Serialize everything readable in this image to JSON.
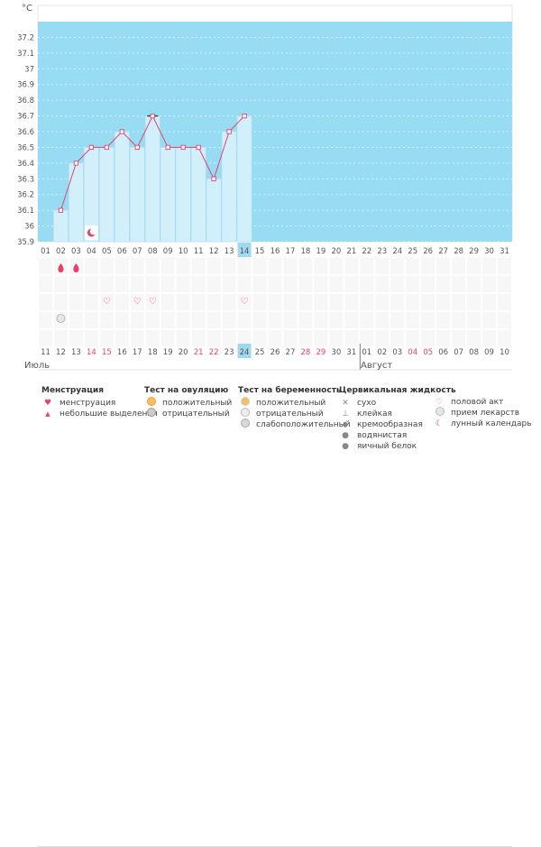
{
  "chart_data": {
    "type": "line",
    "y_unit_label": "°C",
    "ylim": [
      35.9,
      37.3
    ],
    "y_ticks": [
      "37.2",
      "37.1",
      "37",
      "36.9",
      "36.8",
      "36.7",
      "36.6",
      "36.5",
      "36.4",
      "36.3",
      "36.2",
      "36.1",
      "36",
      "35.9"
    ],
    "cycle_days": [
      "01",
      "02",
      "03",
      "04",
      "05",
      "06",
      "07",
      "08",
      "09",
      "10",
      "11",
      "12",
      "13",
      "14",
      "15",
      "16",
      "17",
      "18",
      "19",
      "20",
      "21",
      "22",
      "23",
      "24",
      "25",
      "26",
      "27",
      "28",
      "29",
      "30",
      "31"
    ],
    "temperatures": [
      null,
      36.1,
      36.4,
      36.5,
      36.5,
      36.6,
      36.5,
      36.7,
      36.5,
      36.5,
      36.5,
      36.3,
      36.6,
      36.7
    ],
    "current_cycle_day": "14",
    "calendar_dates": [
      {
        "label": "11",
        "color": "#555555"
      },
      {
        "label": "12",
        "color": "#555555"
      },
      {
        "label": "13",
        "color": "#555555"
      },
      {
        "label": "14",
        "color": "#e8416b"
      },
      {
        "label": "15",
        "color": "#e8416b"
      },
      {
        "label": "16",
        "color": "#555555"
      },
      {
        "label": "17",
        "color": "#555555"
      },
      {
        "label": "18",
        "color": "#555555"
      },
      {
        "label": "19",
        "color": "#555555"
      },
      {
        "label": "20",
        "color": "#555555"
      },
      {
        "label": "21",
        "color": "#e8416b"
      },
      {
        "label": "22",
        "color": "#e8416b"
      },
      {
        "label": "23",
        "color": "#555555"
      },
      {
        "label": "24",
        "color": "#555555"
      },
      {
        "label": "25",
        "color": "#555555"
      },
      {
        "label": "26",
        "color": "#555555"
      },
      {
        "label": "27",
        "color": "#555555"
      },
      {
        "label": "28",
        "color": "#e8416b"
      },
      {
        "label": "29",
        "color": "#e8416b"
      },
      {
        "label": "30",
        "color": "#555555"
      },
      {
        "label": "31",
        "color": "#555555"
      },
      {
        "label": "01",
        "color": "#555555"
      },
      {
        "label": "02",
        "color": "#555555"
      },
      {
        "label": "03",
        "color": "#555555"
      },
      {
        "label": "04",
        "color": "#e8416b"
      },
      {
        "label": "05",
        "color": "#e8416b"
      },
      {
        "label": "06",
        "color": "#555555"
      },
      {
        "label": "07",
        "color": "#555555"
      },
      {
        "label": "08",
        "color": "#555555"
      },
      {
        "label": "09",
        "color": "#555555"
      },
      {
        "label": "10",
        "color": "#555555"
      }
    ],
    "month_labels": [
      "Июль",
      "Август"
    ],
    "markers": {
      "menstruation_days": [
        "02",
        "03"
      ],
      "moon_calendar_days": [
        "04"
      ],
      "intercourse_days": [
        "05",
        "07",
        "08",
        "14"
      ],
      "medication_days": [
        "02"
      ]
    },
    "colors": {
      "band_fill": "#98dcf4",
      "bar_fill": "#d2effc",
      "bar_stroke": "#b6e0f3",
      "line": "#e8416b",
      "accent": "#e8416b",
      "today_highlight": "#9fd8ef"
    }
  },
  "legend": {
    "menstruation": {
      "title": "Менструация",
      "items": [
        {
          "label": "менструация",
          "icon": "drop-icon"
        },
        {
          "label": "небольшие выделения",
          "icon": "small-drop-icon"
        }
      ]
    },
    "ovulation_test": {
      "title": "Тест на овуляцию",
      "items": [
        {
          "label": "положительный",
          "icon": "sun-icon"
        },
        {
          "label": "отрицательный",
          "icon": "gray-sun-icon"
        }
      ]
    },
    "pregnancy_test": {
      "title": "Тест на беременность",
      "items": [
        {
          "label": "положительный",
          "icon": "pos-test-icon"
        },
        {
          "label": "отрицательный",
          "icon": "neg-test-icon"
        },
        {
          "label": "слабоположительный",
          "icon": "weak-test-icon"
        }
      ]
    },
    "cervical_fluid": {
      "title": "Цервикальная жидкость",
      "items": [
        {
          "label": "сухо",
          "icon": "x-icon"
        },
        {
          "label": "клейкая",
          "icon": "sticky-icon"
        },
        {
          "label": "кремообразная",
          "icon": "creamy-icon"
        },
        {
          "label": "водянистая",
          "icon": "watery-icon"
        },
        {
          "label": "яичный белок",
          "icon": "egg-white-icon"
        }
      ]
    },
    "other": {
      "items": [
        {
          "label": "половой акт",
          "icon": "heart-icon"
        },
        {
          "label": "прием лекарств",
          "icon": "pill-icon"
        },
        {
          "label": "лунный календарь",
          "icon": "moon-icon"
        }
      ]
    }
  }
}
